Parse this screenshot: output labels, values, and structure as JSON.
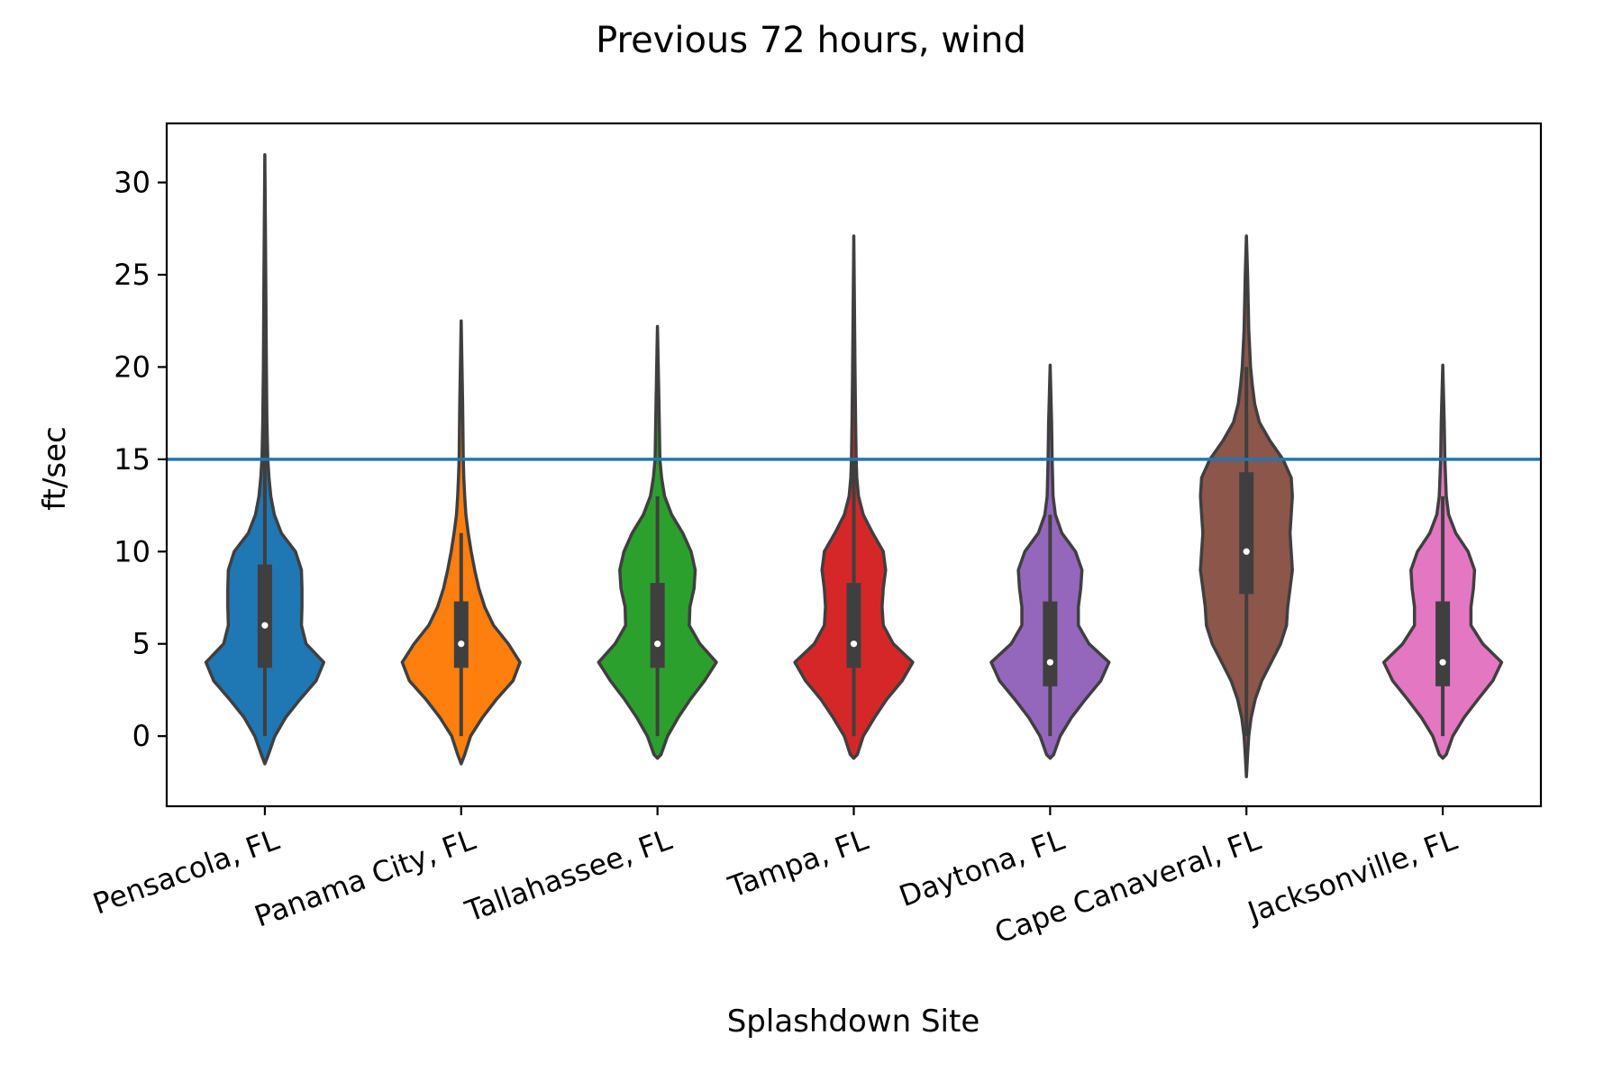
{
  "chart_data": {
    "type": "violin",
    "title": "Previous 72 hours, wind",
    "xlabel": "Splashdown Site",
    "ylabel": "ft/sec",
    "ylim": [
      -3.8,
      33.2
    ],
    "yticks": [
      0,
      5,
      10,
      15,
      20,
      25,
      30
    ],
    "threshold": {
      "value": 15,
      "color": "#1f77b4"
    },
    "categories": [
      "Pensacola, FL",
      "Panama City, FL",
      "Tallahassee, FL",
      "Tampa, FL",
      "Daytona, FL",
      "Cape Canaveral, FL",
      "Jacksonville, FL"
    ],
    "series": [
      {
        "color": "#1f77b4",
        "min": -1.5,
        "max": 31.5,
        "q1": 3.7,
        "median": 6,
        "q3": 9.3,
        "whisker_low": 0,
        "whisker_high": 20,
        "profile": [
          [
            -1.5,
            0.0
          ],
          [
            -1,
            0.06
          ],
          [
            0,
            0.17
          ],
          [
            1,
            0.35
          ],
          [
            2,
            0.6
          ],
          [
            3,
            0.87
          ],
          [
            4,
            1.0
          ],
          [
            5,
            0.7
          ],
          [
            6,
            0.62
          ],
          [
            7,
            0.63
          ],
          [
            8,
            0.63
          ],
          [
            9,
            0.62
          ],
          [
            10,
            0.52
          ],
          [
            11,
            0.28
          ],
          [
            12,
            0.16
          ],
          [
            13,
            0.1
          ],
          [
            14,
            0.07
          ],
          [
            15,
            0.05
          ],
          [
            17,
            0.035
          ],
          [
            20,
            0.025
          ],
          [
            25,
            0.015
          ],
          [
            31.5,
            0.0
          ]
        ]
      },
      {
        "color": "#ff7f0e",
        "min": -1.5,
        "max": 22.5,
        "q1": 3.7,
        "median": 5,
        "q3": 7.3,
        "whisker_low": 0,
        "whisker_high": 11,
        "profile": [
          [
            -1.5,
            0.0
          ],
          [
            -1,
            0.06
          ],
          [
            0,
            0.16
          ],
          [
            1,
            0.36
          ],
          [
            2,
            0.6
          ],
          [
            3,
            0.88
          ],
          [
            4,
            1.0
          ],
          [
            5,
            0.8
          ],
          [
            6,
            0.55
          ],
          [
            7,
            0.4
          ],
          [
            8,
            0.3
          ],
          [
            9,
            0.23
          ],
          [
            10,
            0.17
          ],
          [
            11,
            0.12
          ],
          [
            12,
            0.08
          ],
          [
            13,
            0.06
          ],
          [
            14,
            0.045
          ],
          [
            15,
            0.035
          ],
          [
            18,
            0.025
          ],
          [
            22.5,
            0.0
          ]
        ]
      },
      {
        "color": "#2ca02c",
        "min": -1.2,
        "max": 22.2,
        "q1": 3.7,
        "median": 5,
        "q3": 8.3,
        "whisker_low": 0,
        "whisker_high": 13,
        "profile": [
          [
            -1.2,
            0.0
          ],
          [
            -1,
            0.06
          ],
          [
            0,
            0.17
          ],
          [
            1,
            0.35
          ],
          [
            2,
            0.56
          ],
          [
            3,
            0.8
          ],
          [
            4,
            1.0
          ],
          [
            5,
            0.72
          ],
          [
            6,
            0.54
          ],
          [
            7,
            0.55
          ],
          [
            8,
            0.62
          ],
          [
            9,
            0.64
          ],
          [
            10,
            0.57
          ],
          [
            11,
            0.43
          ],
          [
            12,
            0.24
          ],
          [
            13,
            0.12
          ],
          [
            14,
            0.07
          ],
          [
            15,
            0.04
          ],
          [
            18,
            0.025
          ],
          [
            22.2,
            0.0
          ]
        ]
      },
      {
        "color": "#d62728",
        "min": -1.2,
        "max": 27.1,
        "q1": 3.7,
        "median": 5,
        "q3": 8.3,
        "whisker_low": 0,
        "whisker_high": 15,
        "profile": [
          [
            -1.2,
            0.0
          ],
          [
            -1,
            0.06
          ],
          [
            0,
            0.16
          ],
          [
            1,
            0.35
          ],
          [
            2,
            0.56
          ],
          [
            3,
            0.82
          ],
          [
            4,
            1.0
          ],
          [
            5,
            0.67
          ],
          [
            6,
            0.5
          ],
          [
            7,
            0.48
          ],
          [
            8,
            0.5
          ],
          [
            9,
            0.54
          ],
          [
            10,
            0.5
          ],
          [
            11,
            0.32
          ],
          [
            12,
            0.16
          ],
          [
            13,
            0.08
          ],
          [
            14,
            0.05
          ],
          [
            15,
            0.04
          ],
          [
            17,
            0.03
          ],
          [
            20,
            0.02
          ],
          [
            27.1,
            0.0
          ]
        ]
      },
      {
        "color": "#9467bd",
        "min": -1.2,
        "max": 20.1,
        "q1": 2.7,
        "median": 4,
        "q3": 7.3,
        "whisker_low": 0,
        "whisker_high": 12,
        "profile": [
          [
            -1.2,
            0.0
          ],
          [
            -1,
            0.06
          ],
          [
            0,
            0.17
          ],
          [
            1,
            0.36
          ],
          [
            2,
            0.6
          ],
          [
            3,
            0.86
          ],
          [
            4,
            1.0
          ],
          [
            5,
            0.66
          ],
          [
            6,
            0.48
          ],
          [
            7,
            0.48
          ],
          [
            8,
            0.52
          ],
          [
            9,
            0.54
          ],
          [
            10,
            0.43
          ],
          [
            11,
            0.2
          ],
          [
            12,
            0.09
          ],
          [
            13,
            0.05
          ],
          [
            15,
            0.035
          ],
          [
            17,
            0.025
          ],
          [
            20.1,
            0.0
          ]
        ]
      },
      {
        "color": "#8c564b",
        "min": -2.2,
        "max": 27.1,
        "q1": 7.7,
        "median": 10,
        "q3": 14.3,
        "whisker_low": 0,
        "whisker_high": 20,
        "profile": [
          [
            -2.2,
            0.0
          ],
          [
            -1,
            0.02
          ],
          [
            0,
            0.04
          ],
          [
            1,
            0.08
          ],
          [
            2,
            0.15
          ],
          [
            3,
            0.26
          ],
          [
            4,
            0.42
          ],
          [
            5,
            0.58
          ],
          [
            6,
            0.68
          ],
          [
            7,
            0.7
          ],
          [
            8,
            0.74
          ],
          [
            9,
            0.78
          ],
          [
            10,
            0.76
          ],
          [
            11,
            0.74
          ],
          [
            12,
            0.76
          ],
          [
            13,
            0.78
          ],
          [
            14,
            0.76
          ],
          [
            15,
            0.62
          ],
          [
            16,
            0.4
          ],
          [
            17,
            0.22
          ],
          [
            18,
            0.14
          ],
          [
            19,
            0.1
          ],
          [
            20,
            0.07
          ],
          [
            22,
            0.04
          ],
          [
            25,
            0.02
          ],
          [
            27.1,
            0.0
          ]
        ]
      },
      {
        "color": "#e377c2",
        "min": -1.2,
        "max": 20.1,
        "q1": 2.7,
        "median": 4,
        "q3": 7.3,
        "whisker_low": 0,
        "whisker_high": 13,
        "profile": [
          [
            -1.2,
            0.0
          ],
          [
            -1,
            0.06
          ],
          [
            0,
            0.17
          ],
          [
            1,
            0.36
          ],
          [
            2,
            0.6
          ],
          [
            3,
            0.85
          ],
          [
            4,
            1.0
          ],
          [
            5,
            0.68
          ],
          [
            6,
            0.48
          ],
          [
            7,
            0.48
          ],
          [
            8,
            0.52
          ],
          [
            9,
            0.54
          ],
          [
            10,
            0.43
          ],
          [
            11,
            0.22
          ],
          [
            12,
            0.1
          ],
          [
            13,
            0.06
          ],
          [
            15,
            0.035
          ],
          [
            17,
            0.025
          ],
          [
            20.1,
            0.0
          ]
        ]
      }
    ]
  }
}
